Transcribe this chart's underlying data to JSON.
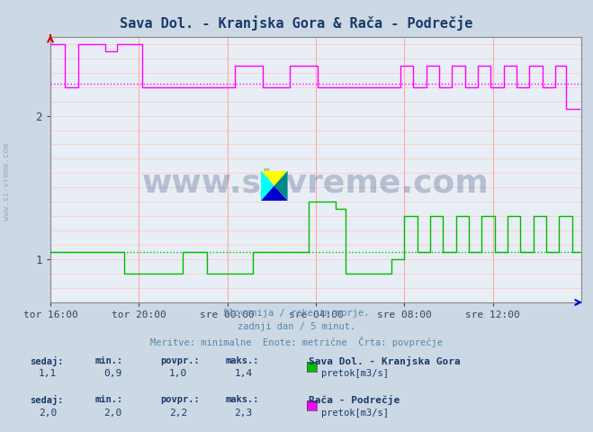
{
  "title": "Sava Dol. - Kranjska Gora & Rača - Podrečje",
  "title_color": "#1a3a6b",
  "bg_color": "#ccd8e4",
  "plot_bg_color": "#e8eef5",
  "xlabel_ticks": [
    "tor 16:00",
    "tor 20:00",
    "sre 00:00",
    "sre 04:00",
    "sre 08:00",
    "sre 12:00"
  ],
  "xlim": [
    0,
    288
  ],
  "ylim": [
    0.7,
    2.55
  ],
  "yticks": [
    1.0,
    2.0
  ],
  "tick_color": "#334466",
  "subtitle_lines": [
    "Slovenija / reke in morje.",
    "zadnji dan / 5 minut.",
    "Meritve: minimalne  Enote: metrične  Črta: povprečje"
  ],
  "subtitle_color": "#5588aa",
  "watermark_text": "www.si-vreme.com",
  "watermark_color": "#1a3a6b",
  "watermark_alpha": 0.25,
  "legend_rows": [
    {
      "label_name": "Sava Dol. - Kranjska Gora",
      "sedaj": "1,1",
      "min": "0,9",
      "povpr": "1,0",
      "maks": "1,4",
      "series_label": "pretok[m3/s]",
      "color": "#00bb00"
    },
    {
      "label_name": "Rača - Podrečje",
      "sedaj": "2,0",
      "min": "2,0",
      "povpr": "2,2",
      "maks": "2,3",
      "series_label": "pretok[m3/s]",
      "color": "#ff00ff"
    }
  ],
  "green_avg": 1.05,
  "magenta_avg": 2.22,
  "sidewater_color": "#8899aa",
  "sidewater_alpha": 0.7,
  "hgrid_color": "#ffcccc",
  "vgrid_color": "#ffaaaa",
  "axis_arrow_color": "#cc0000",
  "x_arrow_color": "#0000cc"
}
